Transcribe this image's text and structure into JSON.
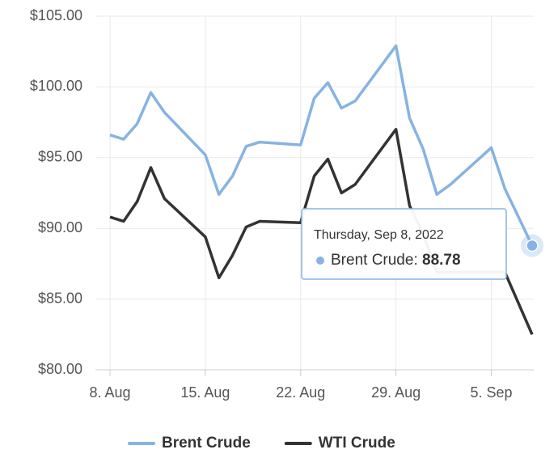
{
  "chart_data": {
    "type": "line",
    "x": [
      "2022-08-08",
      "2022-08-09",
      "2022-08-10",
      "2022-08-11",
      "2022-08-12",
      "2022-08-15",
      "2022-08-16",
      "2022-08-17",
      "2022-08-18",
      "2022-08-19",
      "2022-08-22",
      "2022-08-23",
      "2022-08-24",
      "2022-08-25",
      "2022-08-26",
      "2022-08-29",
      "2022-08-30",
      "2022-08-31",
      "2022-09-01",
      "2022-09-02",
      "2022-09-05",
      "2022-09-06",
      "2022-09-07",
      "2022-09-08"
    ],
    "series": [
      {
        "name": "Brent Crude",
        "color": "#86b3e3",
        "values": [
          96.6,
          96.3,
          97.4,
          99.6,
          98.2,
          95.2,
          92.4,
          93.7,
          95.8,
          96.1,
          95.9,
          99.2,
          100.3,
          98.5,
          99.0,
          102.9,
          97.8,
          95.6,
          92.4,
          93.1,
          95.7,
          92.8,
          90.8,
          88.78
        ]
      },
      {
        "name": "WTI Crude",
        "color": "#333333",
        "values": [
          90.8,
          90.5,
          91.9,
          94.3,
          92.1,
          89.4,
          86.5,
          88.1,
          90.1,
          90.5,
          90.4,
          93.7,
          94.9,
          92.5,
          93.1,
          97.0,
          91.6,
          89.6,
          86.9,
          86.9,
          86.9,
          86.9,
          84.7,
          82.5
        ]
      }
    ],
    "xlim": [
      "2022-08-08",
      "2022-09-08"
    ],
    "xticks": [
      {
        "value": "2022-08-08",
        "label": "8. Aug"
      },
      {
        "value": "2022-08-15",
        "label": "15. Aug"
      },
      {
        "value": "2022-08-22",
        "label": "22. Aug"
      },
      {
        "value": "2022-08-29",
        "label": "29. Aug"
      },
      {
        "value": "2022-09-05",
        "label": "5. Sep"
      }
    ],
    "ylim": [
      80,
      105
    ],
    "yticks": [
      {
        "value": 80,
        "label": "$80.00"
      },
      {
        "value": 85,
        "label": "$85.00"
      },
      {
        "value": 90,
        "label": "$90.00"
      },
      {
        "value": 95,
        "label": "$95.00"
      },
      {
        "value": 100,
        "label": "$100.00"
      },
      {
        "value": 105,
        "label": "$105.00"
      }
    ],
    "grid": true,
    "legend": "bottom",
    "tooltip": {
      "header": "Thursday, Sep 8, 2022",
      "series_label": "Brent Crude:"
    }
  }
}
